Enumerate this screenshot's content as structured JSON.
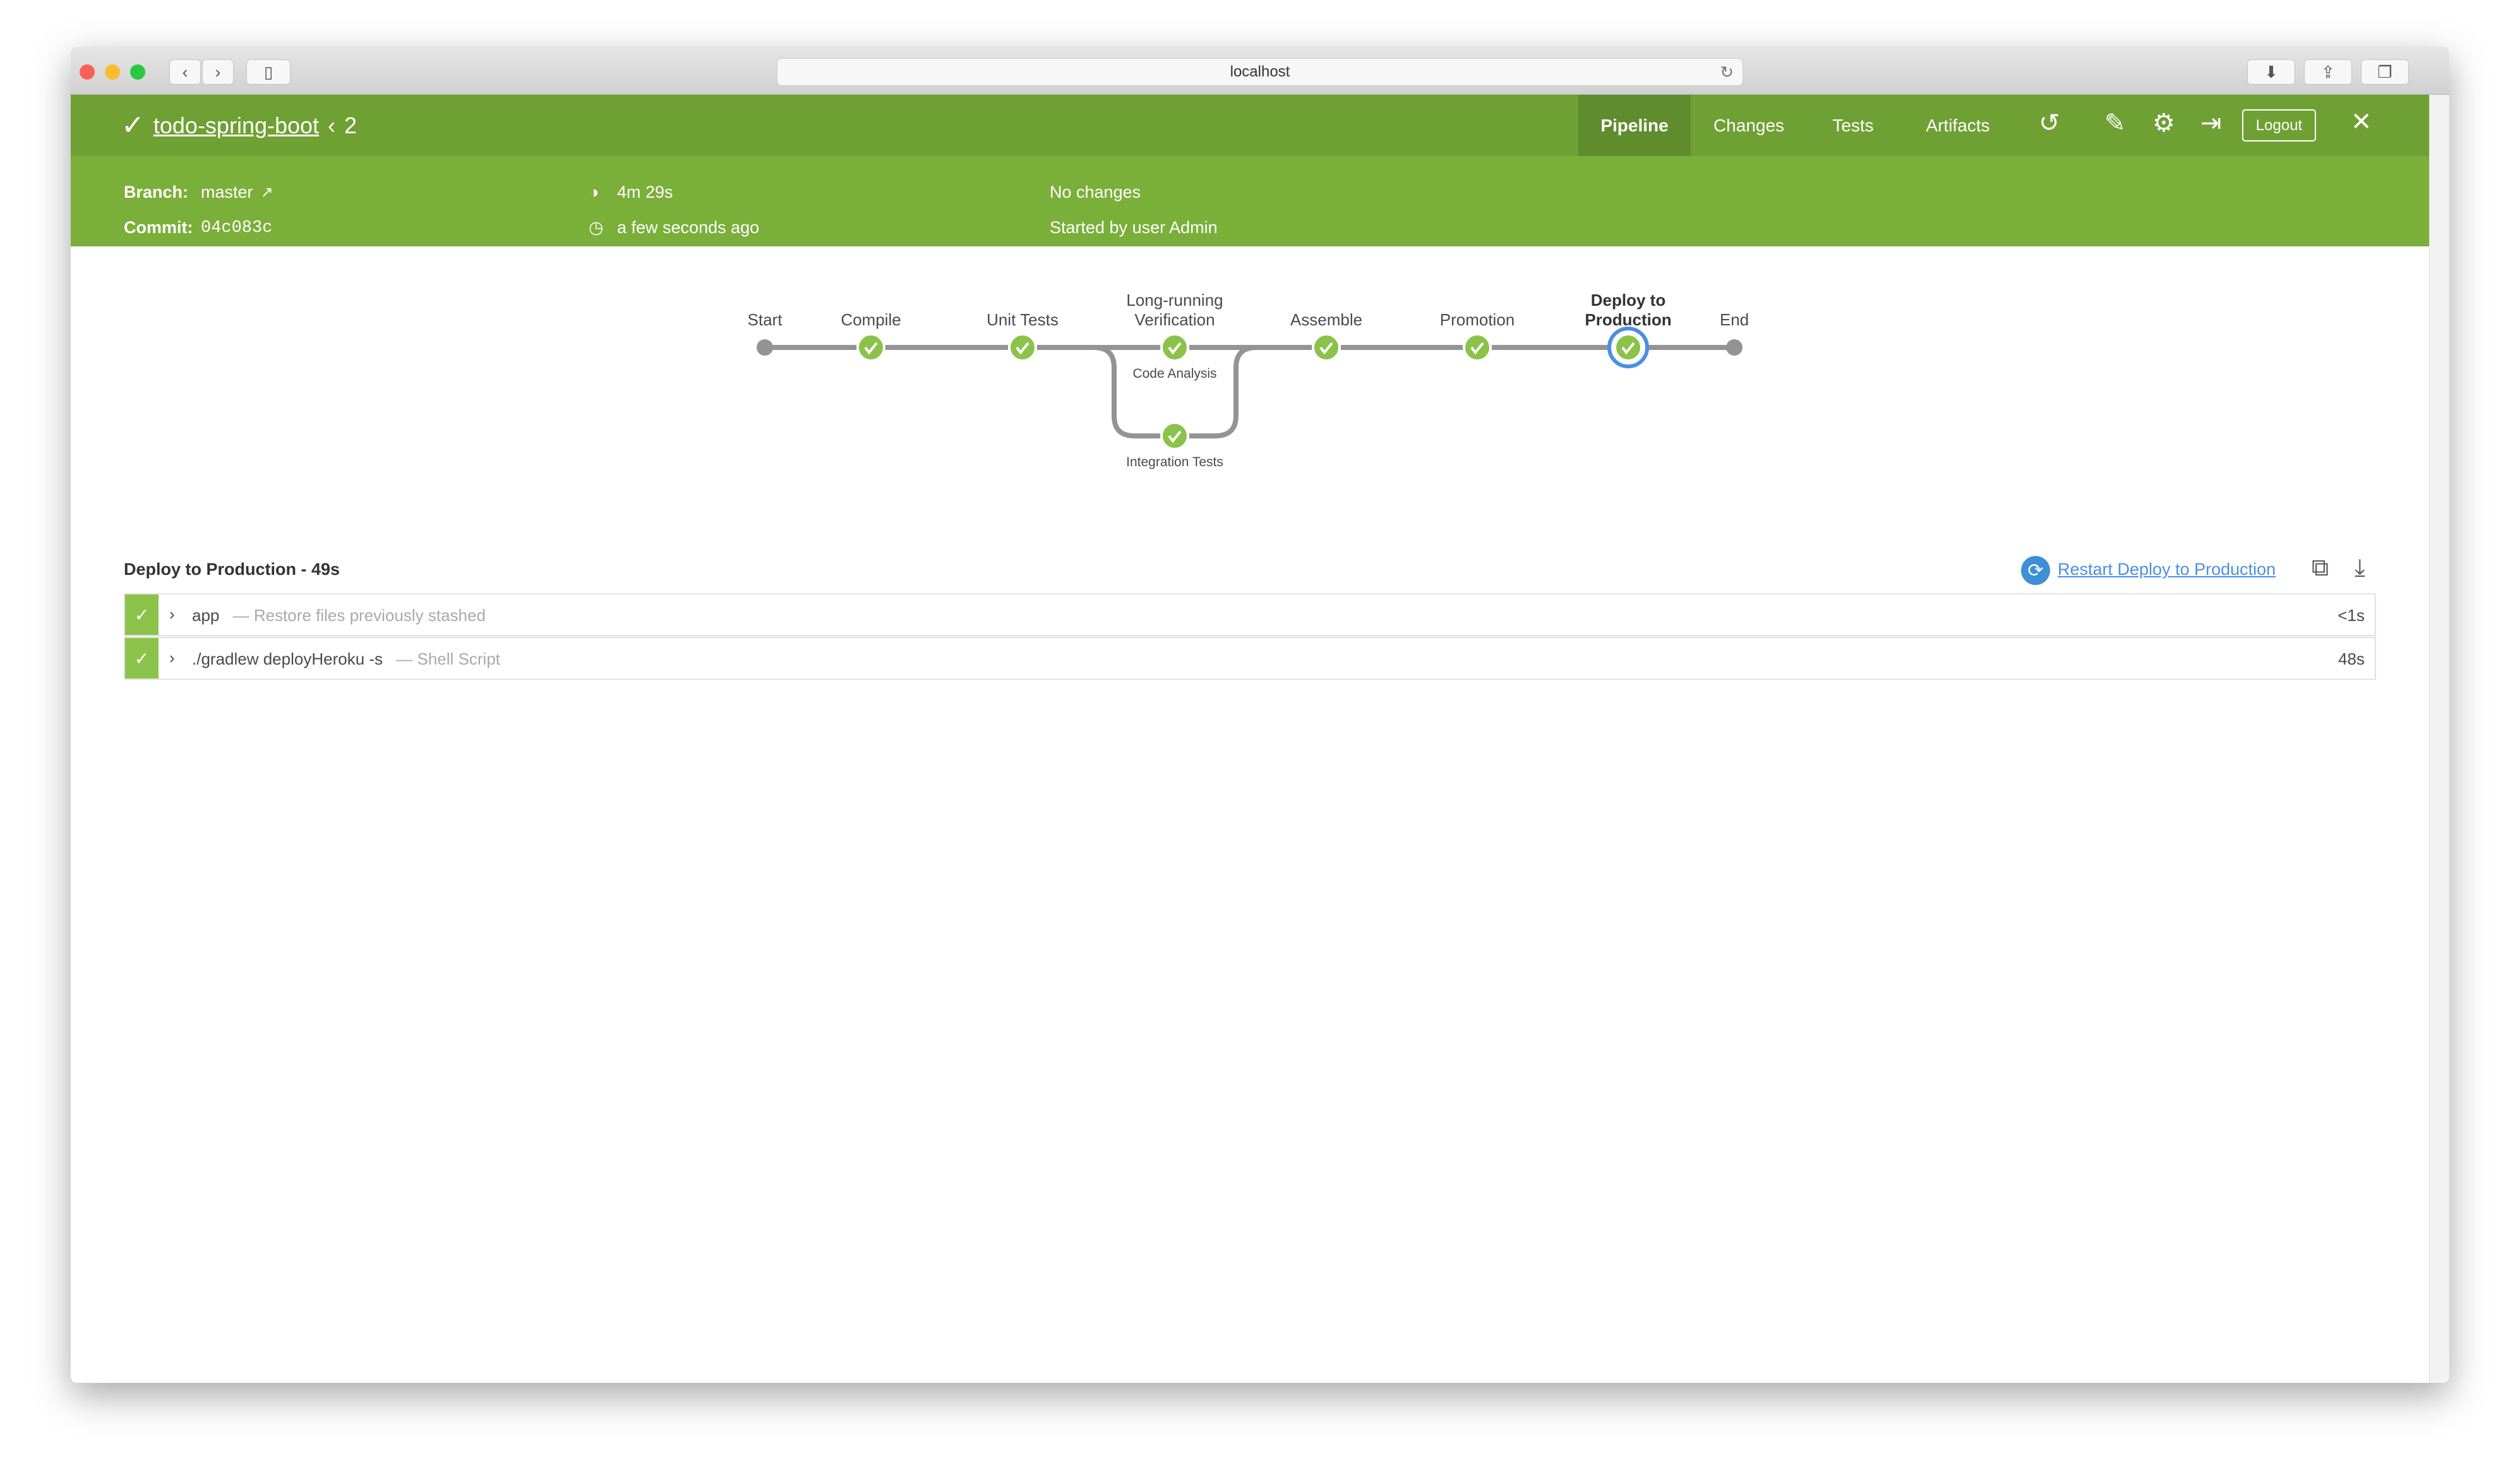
{
  "browser": {
    "url": "localhost"
  },
  "header": {
    "title": "todo-spring-boot",
    "run_number": "2",
    "status": "success",
    "tabs": [
      {
        "label": "Pipeline",
        "active": true
      },
      {
        "label": "Changes"
      },
      {
        "label": "Tests"
      },
      {
        "label": "Artifacts"
      }
    ],
    "logout_label": "Logout",
    "icons": [
      "replay-icon",
      "edit-icon",
      "gear-icon",
      "sign-in-icon",
      "close-icon"
    ]
  },
  "summary": {
    "branch_label": "Branch:",
    "branch": "master",
    "commit_label": "Commit:",
    "commit": "04c083c",
    "duration": "4m 29s",
    "started": "a few seconds ago",
    "changes": "No changes",
    "started_by": "Started by user Admin"
  },
  "pipeline": {
    "stages": [
      {
        "name": "Start",
        "l1": "",
        "l2": "Start"
      },
      {
        "name": "Compile",
        "l1": "",
        "l2": "Compile"
      },
      {
        "name": "Unit Tests",
        "l1": "",
        "l2": "Unit Tests"
      },
      {
        "name": "Long-running Verification",
        "l1": "Long-running",
        "l2": "Verification"
      },
      {
        "name": "Assemble",
        "l1": "",
        "l2": "Assemble"
      },
      {
        "name": "Promotion",
        "l1": "",
        "l2": "Promotion"
      },
      {
        "name": "Deploy to Production",
        "l1": "Deploy to",
        "l2": "Production",
        "selected": true
      },
      {
        "name": "End",
        "l1": "",
        "l2": "End"
      }
    ],
    "parallel": [
      "Code Analysis",
      "Integration Tests"
    ]
  },
  "details": {
    "title": "Deploy to Production - 49s",
    "restart_label": "Restart Deploy to Production",
    "steps": [
      {
        "name": "app",
        "desc": "— Restore files previously stashed",
        "duration": "<1s"
      },
      {
        "name": "./gradlew deployHeroku -s",
        "desc": "— Shell Script",
        "duration": "48s"
      }
    ]
  },
  "colors": {
    "header": "#6fa033",
    "subheader": "#7aaf3a",
    "success": "#8bc34a",
    "selected": "#4a90e2",
    "link": "#4a90e2"
  }
}
